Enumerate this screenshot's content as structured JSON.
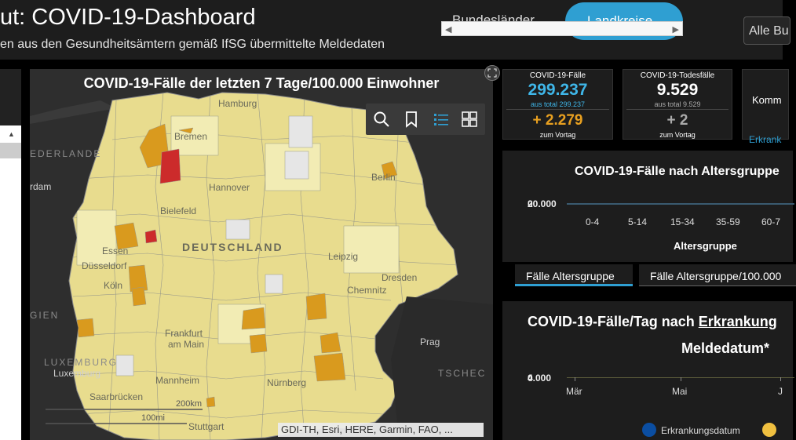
{
  "header": {
    "title": "ut: COVID-19-Dashboard",
    "subtitle": "en aus den Gesundheitsämtern gemäß IfSG übermittelte Meldedaten",
    "segments": [
      "Bundesländer",
      "Landkreise"
    ],
    "select_value": "Alle Bu"
  },
  "map": {
    "title": "COVID-19-Fälle der letzten 7 Tage/100.000 Einwohner",
    "attribution": "GDI-TH, Esri, HERE, Garmin, FAO, ...",
    "country_label": "DEUTSCHLAND",
    "cities": [
      "Hamburg",
      "Bremen",
      "Hannover",
      "Berlin",
      "Bielefeld",
      "Essen",
      "Düsseldorf",
      "Köln",
      "Leipzig",
      "Dresden",
      "Chemnitz",
      "Frankfurt",
      "am Main",
      "Mannheim",
      "Nürnberg",
      "Saarbrücken",
      "Stuttgart",
      "Luxemburg",
      "Prag",
      "rdam"
    ],
    "neighbors": [
      "EDERLANDE",
      "GIEN",
      "LUXEMBURG",
      "TSCHEC"
    ],
    "scale": [
      "200km",
      "100mi"
    ],
    "colors": {
      "very_low": "#e6e6e6",
      "low": "#f2ecb4",
      "mid": "#e6d98a",
      "high": "#d99a1e",
      "very_high": "#cc2b2b"
    }
  },
  "kpis": [
    {
      "label": "COVID-19-Fälle",
      "value": "299.237",
      "total": "aus total 299.237",
      "delta": "+ 2.279",
      "delta_label": "zum Vortag",
      "value_color": "#3fb6e8",
      "total_color": "#3fb6e8",
      "delta_color": "#e8a020"
    },
    {
      "label": "COVID-19-Todesfälle",
      "value": "9.529",
      "total": "aus total 9.529",
      "delta": "+ 2",
      "delta_label": "zum Vortag",
      "value_color": "#ffffff",
      "total_color": "#aaaaaa",
      "delta_color": "#aaaaaa"
    },
    {
      "label": "Komm",
      "link": "Erkrank"
    }
  ],
  "age_chart": {
    "title": "COVID-19-Fälle nach Altersgruppe",
    "ytick": "20.000",
    "ytick_overlap": "0",
    "xlabel": "Altersgruppe",
    "categories": [
      "0-4",
      "5-14",
      "15-34",
      "35-59",
      "60-7"
    ]
  },
  "tabs": [
    "Fälle Altersgruppe",
    "Fälle Altersgruppe/100.000"
  ],
  "daily_chart": {
    "title_prefix": "COVID-19-Fälle/Tag nach ",
    "title_link": "Erkrankung",
    "title_line2": "Meldedatum*",
    "ytick": "4.000",
    "ytick_overlap": "0",
    "categories": [
      "Mär",
      "Mai",
      "J"
    ],
    "legend": [
      {
        "label": "Erkrankungsdatum",
        "color": "#0b4ea2"
      },
      {
        "label": "",
        "color": "#f0c040"
      }
    ]
  }
}
